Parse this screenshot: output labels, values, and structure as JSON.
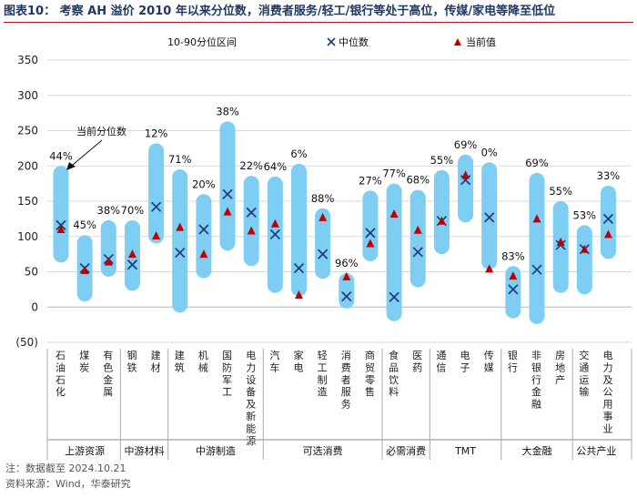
{
  "title": "图表10： 考察 AH 溢价 2010 年以来分位数，消费者服务/轻工/银行等处于高位，传媒/家电等降至低位",
  "notes": {
    "note": "注：数据截至 2024.10.21",
    "source": "资料来源：Wind，华泰研究"
  },
  "colors": {
    "bar": "#7ecef4",
    "median": "#1f3a78",
    "current": "#c00000",
    "title": "#1f3864",
    "rule": "#b4121b"
  },
  "chart_data": {
    "type": "range-bar",
    "title": "考察 AH 溢价 2010 年以来分位数",
    "ylim": [
      -50,
      350
    ],
    "yticks": [
      350,
      300,
      250,
      200,
      150,
      100,
      50,
      0,
      -50
    ],
    "ytick_labels": [
      "350",
      "300",
      "250",
      "200",
      "150",
      "100",
      "50",
      "0",
      "(50)"
    ],
    "legend": {
      "range": "10-90分位区间",
      "median": "中位数",
      "current": "当前值"
    },
    "annotation": "当前分位数",
    "categories": [
      {
        "name": "石油石化",
        "low": 63,
        "high": 200,
        "median": 116,
        "current": 110,
        "pct": "44%"
      },
      {
        "name": "煤炭",
        "low": 8,
        "high": 102,
        "median": 55,
        "current": 52,
        "pct": "45%"
      },
      {
        "name": "有色金属",
        "low": 43,
        "high": 123,
        "median": 68,
        "current": 64,
        "pct": "38%"
      },
      {
        "name": "钢铁",
        "low": 23,
        "high": 123,
        "median": 60,
        "current": 75,
        "pct": "70%"
      },
      {
        "name": "建材",
        "low": 90,
        "high": 232,
        "median": 142,
        "current": 101,
        "pct": "12%"
      },
      {
        "name": "建筑",
        "low": -8,
        "high": 195,
        "median": 77,
        "current": 113,
        "pct": "71%"
      },
      {
        "name": "机械",
        "low": 41,
        "high": 160,
        "median": 110,
        "current": 75,
        "pct": "20%"
      },
      {
        "name": "国防军工",
        "low": 80,
        "high": 263,
        "median": 160,
        "current": 135,
        "pct": "38%"
      },
      {
        "name": "电力设备及新能源",
        "low": 58,
        "high": 186,
        "median": 134,
        "current": 108,
        "pct": "22%"
      },
      {
        "name": "汽车",
        "low": 20,
        "high": 185,
        "median": 103,
        "current": 118,
        "pct": "64%"
      },
      {
        "name": "家电",
        "low": 15,
        "high": 203,
        "median": 55,
        "current": 17,
        "pct": "6%"
      },
      {
        "name": "轻工制造",
        "low": 40,
        "high": 140,
        "median": 75,
        "current": 127,
        "pct": "88%"
      },
      {
        "name": "消费者服务",
        "low": -2,
        "high": 48,
        "median": 15,
        "current": 43,
        "pct": "96%"
      },
      {
        "name": "商贸零售",
        "low": 65,
        "high": 165,
        "median": 105,
        "current": 90,
        "pct": "27%"
      },
      {
        "name": "食品饮料",
        "low": -20,
        "high": 175,
        "median": 14,
        "current": 132,
        "pct": "77%"
      },
      {
        "name": "医药",
        "low": 28,
        "high": 166,
        "median": 78,
        "current": 109,
        "pct": "68%"
      },
      {
        "name": "通信",
        "low": 75,
        "high": 194,
        "median": 122,
        "current": 122,
        "pct": "55%"
      },
      {
        "name": "电子",
        "low": 120,
        "high": 216,
        "median": 180,
        "current": 187,
        "pct": "69%"
      },
      {
        "name": "传媒",
        "low": 53,
        "high": 205,
        "median": 127,
        "current": 54,
        "pct": "0%"
      },
      {
        "name": "银行",
        "low": -16,
        "high": 58,
        "median": 25,
        "current": 44,
        "pct": "83%"
      },
      {
        "name": "非银行金融",
        "low": -24,
        "high": 190,
        "median": 53,
        "current": 125,
        "pct": "69%"
      },
      {
        "name": "房地产",
        "low": 20,
        "high": 150,
        "median": 88,
        "current": 92,
        "pct": "55%"
      },
      {
        "name": "交通运输",
        "low": 18,
        "high": 116,
        "median": 82,
        "current": 82,
        "pct": "53%"
      },
      {
        "name": "电力及公用事业",
        "low": 68,
        "high": 172,
        "median": 125,
        "current": 103,
        "pct": "33%"
      }
    ],
    "groups": [
      {
        "name": "上游资源",
        "count": 3
      },
      {
        "name": "中游材料",
        "count": 2
      },
      {
        "name": "中游制造",
        "count": 4
      },
      {
        "name": "可选消费",
        "count": 5
      },
      {
        "name": "必需消费",
        "count": 2
      },
      {
        "name": "TMT",
        "count": 3
      },
      {
        "name": "大金融",
        "count": 3
      },
      {
        "name": "公共产业",
        "count": 2
      }
    ]
  }
}
